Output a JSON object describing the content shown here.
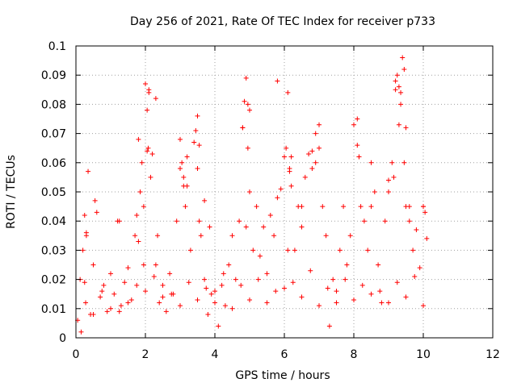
{
  "chart_data": {
    "type": "scatter",
    "title": "Day 256 of 2021, Rate Of TEC Index for receiver p733",
    "xlabel": "GPS time / hours",
    "ylabel": "ROTI / TECUs",
    "xlim": [
      0,
      12
    ],
    "ylim": [
      0,
      0.1
    ],
    "xticks": [
      0,
      2,
      4,
      6,
      8,
      10,
      12
    ],
    "xtick_labels": [
      "0",
      "2",
      "4",
      "6",
      "8",
      "10",
      "12"
    ],
    "yticks": [
      0,
      0.01,
      0.02,
      0.03,
      0.04,
      0.05,
      0.06,
      0.07,
      0.08,
      0.09,
      0.1
    ],
    "ytick_labels": [
      "0",
      "0.01",
      "0.02",
      "0.03",
      "0.04",
      "0.05",
      "0.06",
      "0.07",
      "0.08",
      "0.09",
      "0.1"
    ],
    "grid": true,
    "marker": "+",
    "color": "#ff0000",
    "series": [
      {
        "x": [
          0.05,
          0.12,
          0.2,
          0.28,
          0.35,
          0.42,
          0.5,
          0.6,
          0.7,
          0.8,
          0.9,
          1.0,
          1.1,
          1.2,
          1.3,
          1.4,
          1.5,
          1.6,
          1.7,
          1.8,
          1.85,
          1.9,
          1.95,
          2.0,
          2.05,
          2.1,
          2.15,
          2.2,
          2.3,
          2.4,
          2.5,
          2.6,
          2.7,
          2.8,
          2.9,
          3.0,
          3.05,
          3.1,
          3.15,
          3.2,
          3.3,
          3.4,
          3.45,
          3.5,
          3.55,
          3.6,
          3.7,
          3.8,
          3.9,
          4.0,
          4.1,
          4.2,
          4.3,
          4.4,
          4.5,
          4.6,
          4.7,
          4.8,
          4.85,
          4.9,
          4.95,
          5.0,
          5.1,
          5.2,
          5.3,
          5.4,
          5.5,
          5.6,
          5.7,
          5.8,
          5.9,
          6.0,
          6.05,
          6.1,
          6.15,
          6.2,
          6.3,
          6.4,
          6.5,
          6.6,
          6.7,
          6.8,
          6.9,
          7.0,
          7.1,
          7.2,
          7.3,
          7.4,
          7.5,
          7.6,
          7.7,
          7.8,
          7.9,
          8.0,
          8.1,
          8.15,
          8.2,
          8.3,
          8.4,
          8.5,
          8.6,
          8.7,
          8.8,
          8.9,
          9.0,
          9.1,
          9.15,
          9.2,
          9.25,
          9.3,
          9.35,
          9.4,
          9.45,
          9.5,
          9.6,
          9.7,
          9.8,
          9.9,
          10.0,
          10.05,
          10.1,
          0.3,
          0.3,
          0.25,
          0.55,
          1.25,
          1.75,
          1.8,
          1.95,
          2.05,
          2.08,
          2.1,
          2.3,
          2.35,
          3.0,
          3.1,
          3.2,
          3.5,
          3.55,
          3.7,
          4.8,
          4.9,
          4.95,
          5.0,
          5.8,
          6.1,
          6.15,
          6.2,
          6.5,
          6.8,
          6.9,
          7.0,
          8.1,
          8.15,
          8.5,
          9.0,
          9.2,
          9.3,
          9.35,
          9.45,
          9.5,
          9.6,
          10.0,
          3.85,
          0.15,
          0.5,
          1.0,
          1.5,
          2.0,
          2.5,
          3.0,
          3.5,
          4.0,
          4.5,
          5.0,
          5.5,
          6.0,
          6.5,
          7.0,
          7.5,
          8.0,
          8.5,
          9.0,
          9.5,
          10.0,
          0.25,
          0.75,
          1.25,
          1.75,
          2.25,
          2.75,
          3.25,
          3.75,
          4.25,
          4.75,
          5.25,
          5.75,
          6.25,
          6.75,
          7.25,
          7.75,
          8.25,
          8.75,
          9.25,
          9.75
        ],
        "y": [
          0.006,
          0.02,
          0.03,
          0.012,
          0.057,
          0.008,
          0.025,
          0.043,
          0.014,
          0.018,
          0.009,
          0.022,
          0.015,
          0.04,
          0.011,
          0.019,
          0.024,
          0.013,
          0.035,
          0.068,
          0.05,
          0.06,
          0.045,
          0.087,
          0.078,
          0.084,
          0.055,
          0.063,
          0.025,
          0.012,
          0.018,
          0.009,
          0.022,
          0.015,
          0.04,
          0.068,
          0.06,
          0.055,
          0.045,
          0.052,
          0.03,
          0.067,
          0.071,
          0.076,
          0.04,
          0.035,
          0.02,
          0.008,
          0.015,
          0.012,
          0.004,
          0.018,
          0.011,
          0.025,
          0.035,
          0.02,
          0.04,
          0.072,
          0.081,
          0.089,
          0.065,
          0.05,
          0.03,
          0.045,
          0.028,
          0.038,
          0.022,
          0.042,
          0.035,
          0.048,
          0.051,
          0.062,
          0.065,
          0.084,
          0.058,
          0.052,
          0.03,
          0.045,
          0.038,
          0.055,
          0.063,
          0.058,
          0.07,
          0.073,
          0.045,
          0.035,
          0.004,
          0.02,
          0.012,
          0.03,
          0.045,
          0.025,
          0.035,
          0.073,
          0.066,
          0.062,
          0.045,
          0.04,
          0.03,
          0.06,
          0.05,
          0.025,
          0.012,
          0.04,
          0.05,
          0.06,
          0.055,
          0.085,
          0.09,
          0.073,
          0.08,
          0.096,
          0.092,
          0.072,
          0.045,
          0.03,
          0.037,
          0.024,
          0.045,
          0.043,
          0.034,
          0.036,
          0.035,
          0.042,
          0.047,
          0.04,
          0.042,
          0.033,
          0.025,
          0.064,
          0.065,
          0.085,
          0.082,
          0.035,
          0.058,
          0.052,
          0.062,
          0.058,
          0.066,
          0.047,
          0.072,
          0.038,
          0.08,
          0.078,
          0.088,
          0.03,
          0.057,
          0.062,
          0.045,
          0.064,
          0.06,
          0.065,
          0.075,
          0.062,
          0.045,
          0.054,
          0.088,
          0.086,
          0.084,
          0.06,
          0.045,
          0.04,
          0.045,
          0.038,
          0.002,
          0.008,
          0.01,
          0.012,
          0.016,
          0.014,
          0.011,
          0.013,
          0.016,
          0.01,
          0.013,
          0.012,
          0.017,
          0.014,
          0.011,
          0.016,
          0.013,
          0.015,
          0.012,
          0.014,
          0.011,
          0.019,
          0.016,
          0.009,
          0.018,
          0.021,
          0.015,
          0.019,
          0.017,
          0.022,
          0.018,
          0.02,
          0.016,
          0.019,
          0.023,
          0.017,
          0.02,
          0.018,
          0.016,
          0.019,
          0.021
        ]
      }
    ]
  }
}
